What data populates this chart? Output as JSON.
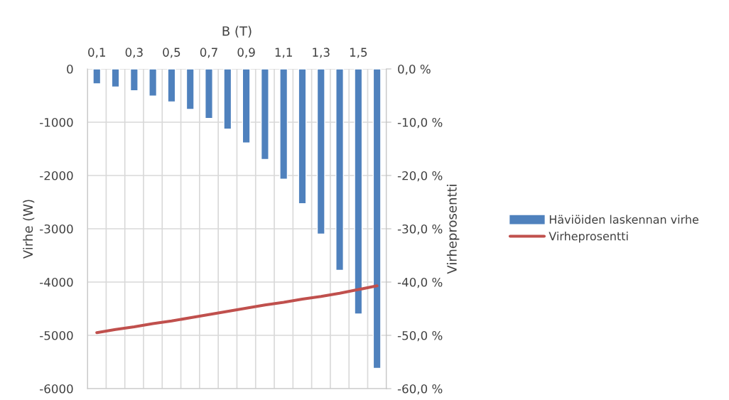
{
  "chart_data": {
    "type": "bar",
    "xlabel": "B (T)",
    "ylabel": "Virhe (W)",
    "y2label": "Virheprosentti",
    "categories": [
      "0,1",
      null,
      "0,3",
      null,
      "0,5",
      null,
      "0,7",
      null,
      "0,9",
      null,
      "1,1",
      null,
      "1,3",
      null,
      "1,5",
      null
    ],
    "series": [
      {
        "name": "Häviöiden laskennan virhe",
        "color": "#4f81bd",
        "values": [
          -280,
          -340,
          -410,
          -510,
          -620,
          -760,
          -930,
          -1130,
          -1390,
          -1700,
          -2070,
          -2530,
          -3100,
          -3780,
          -4600,
          -5620
        ]
      },
      {
        "name": "Virheprosentti",
        "type": "line",
        "axis": "y2",
        "color": "#c0504d",
        "values": [
          -49.5,
          -48.9,
          -48.4,
          -47.8,
          -47.3,
          -46.7,
          -46.1,
          -45.5,
          -44.9,
          -44.3,
          -43.8,
          -43.2,
          -42.7,
          -42.1,
          -41.4,
          -40.7
        ]
      }
    ],
    "ylim": [
      -6000,
      0
    ],
    "yticks": [
      -6000,
      -5000,
      -4000,
      -3000,
      -2000,
      -1000,
      0
    ],
    "y2lim": [
      -60,
      0
    ],
    "y2ticks": [
      {
        "value": -60,
        "label": "-60,0 %"
      },
      {
        "value": -50,
        "label": "-50,0 %"
      },
      {
        "value": -40,
        "label": "-40,0 %"
      },
      {
        "value": -30,
        "label": "-30,0 %"
      },
      {
        "value": -20,
        "label": "-20,0 %"
      },
      {
        "value": -10,
        "label": "-10,0 %"
      },
      {
        "value": 0,
        "label": "0,0 %"
      }
    ],
    "grid": true,
    "legend": "right"
  }
}
